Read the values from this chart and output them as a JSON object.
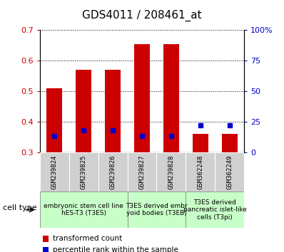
{
  "title": "GDS4011 / 208461_at",
  "samples": [
    "GSM239824",
    "GSM239825",
    "GSM239826",
    "GSM239827",
    "GSM239828",
    "GSM362248",
    "GSM362249"
  ],
  "transformed_count": [
    0.51,
    0.57,
    0.57,
    0.655,
    0.655,
    0.362,
    0.362
  ],
  "percentile_rank": [
    0.355,
    0.373,
    0.373,
    0.354,
    0.354,
    0.39,
    0.39
  ],
  "bar_bottom": 0.3,
  "ylim": [
    0.3,
    0.7
  ],
  "ylim_right": [
    0,
    100
  ],
  "yticks_left": [
    0.3,
    0.4,
    0.5,
    0.6,
    0.7
  ],
  "yticks_right": [
    0,
    25,
    50,
    75,
    100
  ],
  "ytick_right_labels": [
    "0",
    "25",
    "50",
    "75",
    "100%"
  ],
  "bar_color": "#cc0000",
  "dot_color": "#0000cc",
  "groups": [
    {
      "label": "embryonic stem cell line\nhES-T3 (T3ES)",
      "start": 0,
      "end": 3
    },
    {
      "label": "T3ES derived embr\nyoid bodies (T3EB)",
      "start": 3,
      "end": 5
    },
    {
      "label": "T3ES derived\npancreatic islet-like\ncells (T3pi)",
      "start": 5,
      "end": 7
    }
  ],
  "group_color": "#c8ffc8",
  "sample_box_color": "#d0d0d0",
  "cell_type_label": "cell type",
  "legend_red": "transformed count",
  "legend_blue": "percentile rank within the sample",
  "bar_width": 0.55,
  "tick_color_left": "#cc0000",
  "tick_color_right": "#0000cc",
  "title_fontsize": 11,
  "tick_fontsize": 8,
  "sample_fontsize": 6.5,
  "group_fontsize": 6.5,
  "legend_fontsize": 7.5
}
